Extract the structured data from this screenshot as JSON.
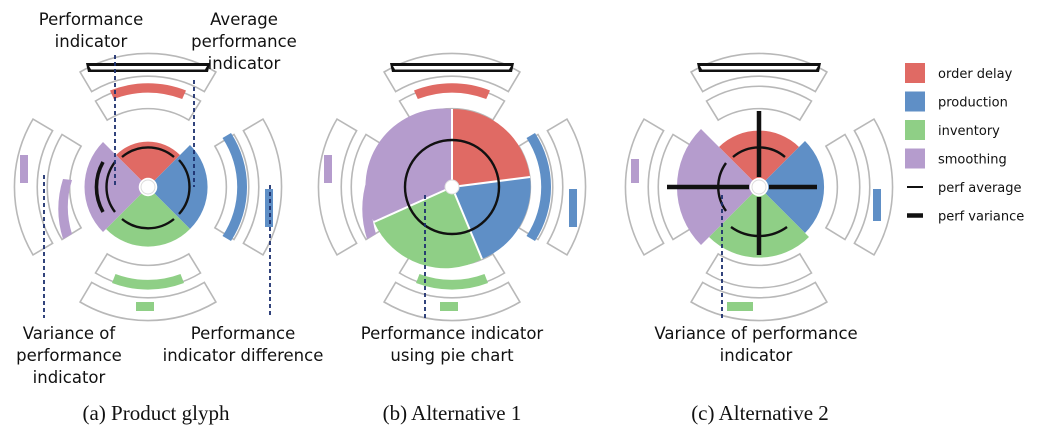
{
  "colors": {
    "order_delay": "#e06a64",
    "production": "#5f8fc6",
    "inventory": "#8fcf86",
    "smoothing": "#b59ccd",
    "stroke": "#111111",
    "track": "#b8b8b8",
    "dash": "#1c2f6e"
  },
  "annotations": {
    "a_performance_indicator": [
      "Performance",
      "indicator"
    ],
    "a_average_performance_indicator": [
      "Average",
      "performance",
      "indicator"
    ],
    "a_variance": [
      "Variance of",
      "performance",
      "indicator"
    ],
    "a_difference": [
      "Performance",
      "indicator difference"
    ],
    "b_pie": [
      "Performance indicator",
      "using pie chart"
    ],
    "c_variance": [
      "Variance of performance",
      "indicator"
    ]
  },
  "captions": {
    "a": "(a) Product glyph",
    "b": "(b) Alternative 1",
    "c": "(c) Alternative 2"
  },
  "legend": [
    {
      "label": "order delay",
      "kind": "swatch",
      "color_key": "order_delay"
    },
    {
      "label": "production",
      "kind": "swatch",
      "color_key": "production"
    },
    {
      "label": "inventory",
      "kind": "swatch",
      "color_key": "inventory"
    },
    {
      "label": "smoothing",
      "kind": "swatch",
      "color_key": "smoothing"
    },
    {
      "label": "perf average",
      "kind": "thin-line"
    },
    {
      "label": "perf variance",
      "kind": "thick-line"
    }
  ]
}
